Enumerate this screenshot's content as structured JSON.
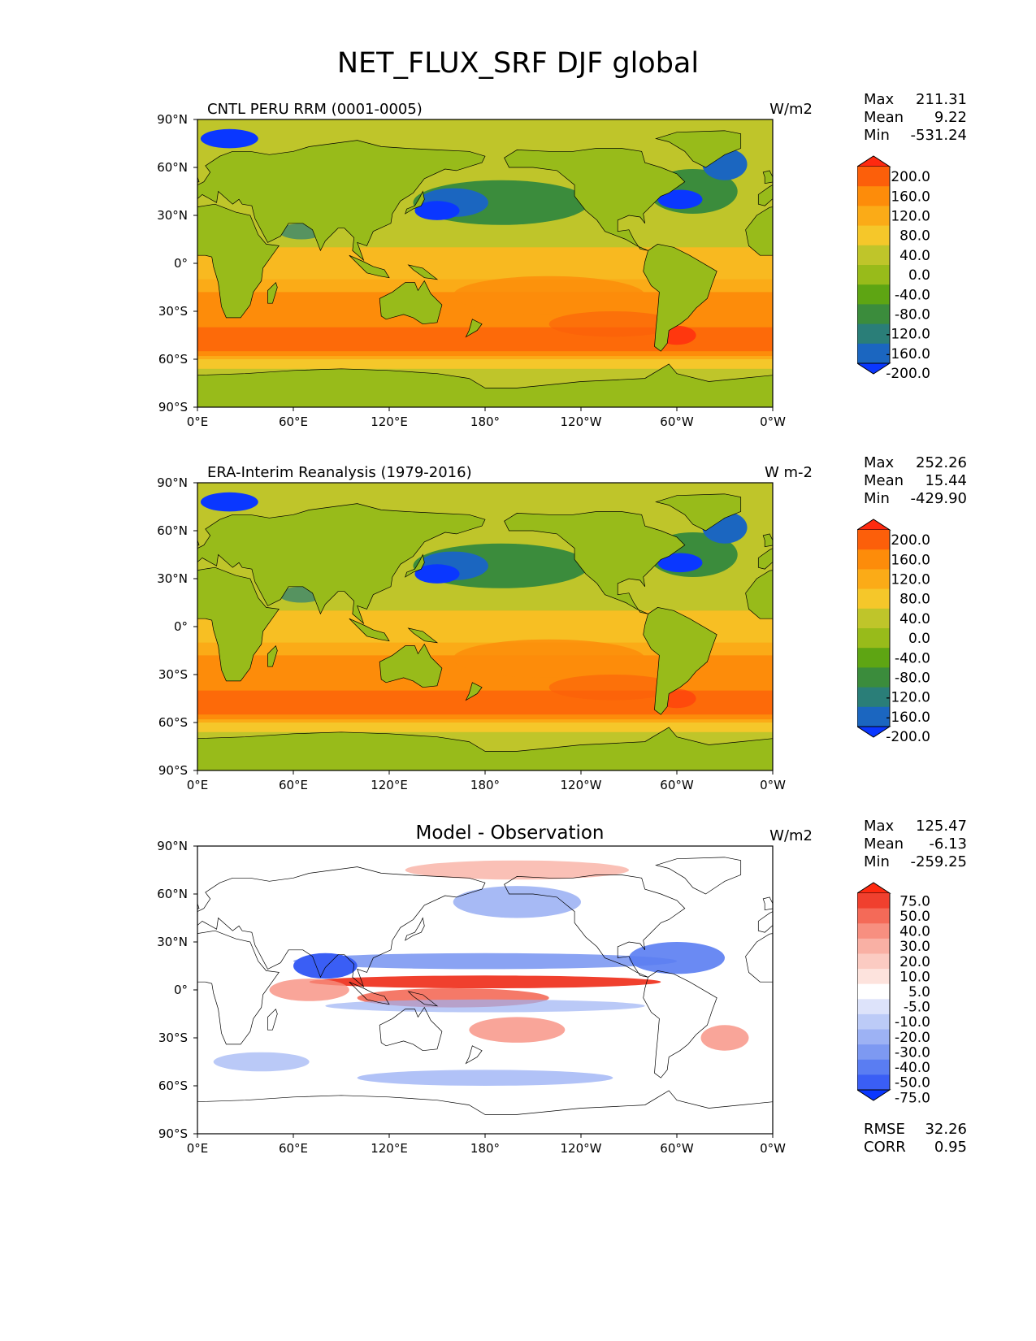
{
  "title": "NET_FLUX_SRF DJF global",
  "axes": {
    "x_ticks": [
      "0°E",
      "60°E",
      "120°E",
      "180°",
      "120°W",
      "60°W",
      "0°W"
    ],
    "y_ticks": [
      "90°N",
      "60°N",
      "30°N",
      "0°",
      "30°S",
      "60°S",
      "90°S"
    ]
  },
  "panels": [
    {
      "id": "test",
      "title": "CNTL PERU RRM (0001-0005)",
      "units": "W/m2",
      "stats": [
        {
          "label": "Max",
          "value": "211.31"
        },
        {
          "label": "Mean",
          "value": "9.22"
        },
        {
          "label": "Min",
          "value": "-531.24"
        }
      ],
      "colorbar_labels": [
        "200.0",
        "160.0",
        "120.0",
        "80.0",
        "40.0",
        "0.0",
        "-40.0",
        "-80.0",
        "-120.0",
        "-160.0",
        "-200.0"
      ],
      "colors": [
        "#ff2a10",
        "#fc5f0a",
        "#fd8c0a",
        "#fbab17",
        "#f5c72a",
        "#bfc52a",
        "#98bb1a",
        "#5ea513",
        "#3b8c3c",
        "#2a7e78",
        "#1b66c0",
        "#0a37ff"
      ]
    },
    {
      "id": "reference",
      "title": "ERA-Interim Reanalysis (1979-2016)",
      "units": "W m-2",
      "stats": [
        {
          "label": "Max",
          "value": "252.26"
        },
        {
          "label": "Mean",
          "value": "15.44"
        },
        {
          "label": "Min",
          "value": "-429.90"
        }
      ],
      "colorbar_labels": [
        "200.0",
        "160.0",
        "120.0",
        "80.0",
        "40.0",
        "0.0",
        "-40.0",
        "-80.0",
        "-120.0",
        "-160.0",
        "-200.0"
      ],
      "colors": [
        "#ff2a10",
        "#fc5f0a",
        "#fd8c0a",
        "#fbab17",
        "#f5c72a",
        "#bfc52a",
        "#98bb1a",
        "#5ea513",
        "#3b8c3c",
        "#2a7e78",
        "#1b66c0",
        "#0a37ff"
      ]
    },
    {
      "id": "diff",
      "title": "Model - Observation",
      "units": "W/m2",
      "stats": [
        {
          "label": "Max",
          "value": "125.47"
        },
        {
          "label": "Mean",
          "value": "-6.13"
        },
        {
          "label": "Min",
          "value": "-259.25"
        }
      ],
      "extra_stats": [
        {
          "label": "RMSE",
          "value": "32.26"
        },
        {
          "label": "CORR",
          "value": "0.95"
        }
      ],
      "colorbar_labels": [
        "75.0",
        "50.0",
        "40.0",
        "30.0",
        "20.0",
        "10.0",
        "5.0",
        "-5.0",
        "-10.0",
        "-20.0",
        "-30.0",
        "-40.0",
        "-50.0",
        "-75.0"
      ],
      "colors": [
        "#ff2a10",
        "#f0402e",
        "#f46a58",
        "#f78f80",
        "#f9b0a4",
        "#fbcbc2",
        "#fde3dd",
        "#ffffff",
        "#dde3fa",
        "#bccbf7",
        "#9db2f4",
        "#7d99f2",
        "#5a7df2",
        "#3a5ef5",
        "#0a37ff"
      ]
    }
  ],
  "chart_data": [
    {
      "type": "heatmap",
      "title": "CNTL PERU RRM (0001-0005)",
      "units": "W/m2",
      "x_range": [
        0,
        360
      ],
      "y_range": [
        -90,
        90
      ],
      "levels": [
        -200,
        -160,
        -120,
        -80,
        -40,
        0,
        40,
        80,
        120,
        160,
        200
      ],
      "max": 211.31,
      "mean": 9.22,
      "min": -531.24
    },
    {
      "type": "heatmap",
      "title": "ERA-Interim Reanalysis (1979-2016)",
      "units": "W m-2",
      "x_range": [
        0,
        360
      ],
      "y_range": [
        -90,
        90
      ],
      "levels": [
        -200,
        -160,
        -120,
        -80,
        -40,
        0,
        40,
        80,
        120,
        160,
        200
      ],
      "max": 252.26,
      "mean": 15.44,
      "min": -429.9
    },
    {
      "type": "heatmap",
      "title": "Model - Observation",
      "units": "W/m2",
      "x_range": [
        0,
        360
      ],
      "y_range": [
        -90,
        90
      ],
      "levels": [
        -75,
        -50,
        -40,
        -30,
        -20,
        -10,
        -5,
        5,
        10,
        20,
        30,
        40,
        50,
        75
      ],
      "max": 125.47,
      "mean": -6.13,
      "min": -259.25,
      "rmse": 32.26,
      "corr": 0.95
    }
  ]
}
